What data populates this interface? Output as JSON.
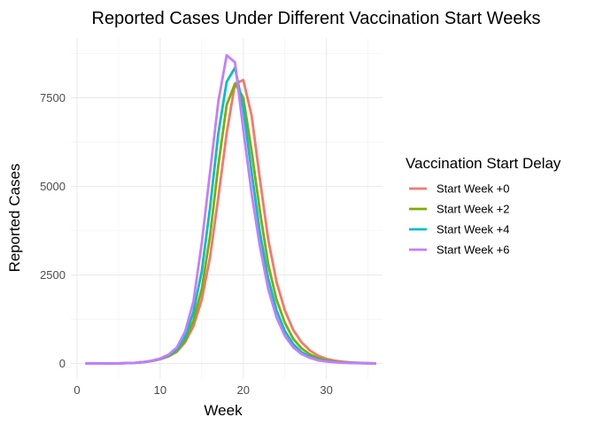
{
  "chart_data": {
    "type": "line",
    "title": "Reported Cases Under Different Vaccination Start Weeks",
    "xlabel": "Week",
    "ylabel": "Reported Cases",
    "xlim": [
      -0.75,
      36.75
    ],
    "ylim": [
      -436,
      9186
    ],
    "x_ticks": [
      0,
      10,
      20,
      30
    ],
    "y_ticks": [
      0,
      2500,
      5000,
      7500
    ],
    "y_tick_labels": [
      "0",
      "2500",
      "5000",
      "7500"
    ],
    "grid": true,
    "legend": {
      "title": "Vaccination Start Delay",
      "position": "right"
    },
    "x": [
      1,
      2,
      3,
      4,
      5,
      6,
      7,
      8,
      9,
      10,
      11,
      12,
      13,
      14,
      15,
      16,
      17,
      18,
      19,
      20,
      21,
      22,
      23,
      24,
      25,
      26,
      27,
      28,
      29,
      30,
      31,
      32,
      33,
      34,
      35,
      36
    ],
    "series": [
      {
        "name": "Start Week +0",
        "color": "#F8766D",
        "values": [
          0,
          0,
          0,
          2,
          5,
          10,
          20,
          40,
          70,
          120,
          200,
          330,
          600,
          1050,
          1800,
          3000,
          4700,
          6500,
          7900,
          8000,
          7000,
          5200,
          3500,
          2300,
          1500,
          950,
          600,
          370,
          220,
          130,
          80,
          50,
          30,
          20,
          10,
          5
        ]
      },
      {
        "name": "Start Week +2",
        "color": "#7CAE00",
        "values": [
          0,
          0,
          0,
          2,
          5,
          10,
          20,
          40,
          70,
          130,
          210,
          350,
          650,
          1200,
          2100,
          3600,
          5600,
          7300,
          7900,
          7500,
          6000,
          4300,
          2800,
          1800,
          1150,
          700,
          430,
          260,
          150,
          90,
          55,
          35,
          22,
          14,
          8,
          4
        ]
      },
      {
        "name": "Start Week +4",
        "color": "#00BFC4",
        "values": [
          0,
          0,
          0,
          2,
          5,
          10,
          20,
          40,
          75,
          135,
          230,
          400,
          750,
          1450,
          2600,
          4400,
          6500,
          7950,
          8350,
          7200,
          5400,
          3700,
          2400,
          1500,
          920,
          550,
          320,
          190,
          110,
          65,
          40,
          25,
          15,
          10,
          6,
          3
        ]
      },
      {
        "name": "Start Week +6",
        "color": "#C77CFF",
        "values": [
          0,
          0,
          0,
          2,
          5,
          10,
          20,
          45,
          80,
          140,
          250,
          450,
          900,
          1750,
          3400,
          5400,
          7400,
          8700,
          8500,
          6600,
          4800,
          3300,
          2100,
          1300,
          780,
          460,
          270,
          160,
          90,
          55,
          35,
          22,
          14,
          9,
          5,
          3
        ]
      }
    ]
  }
}
